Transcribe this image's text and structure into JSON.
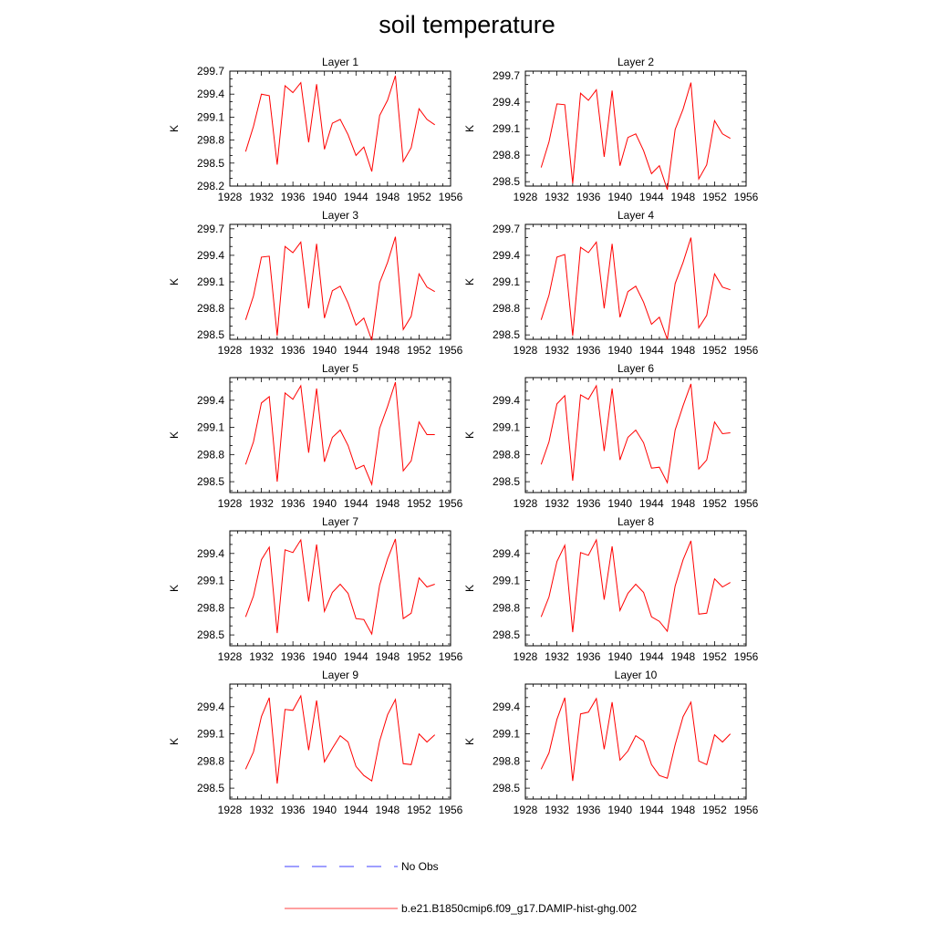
{
  "title": "soil temperature",
  "legend": {
    "obs_label": "No Obs",
    "model_label": "b.e21.B1850cmip6.f09_g17.DAMIP-hist-ghg.002",
    "model_color": "#ff0000",
    "obs_color": "#0000ff"
  },
  "chart_data": {
    "type": "line",
    "x": [
      1930,
      1931,
      1932,
      1933,
      1934,
      1935,
      1936,
      1937,
      1938,
      1939,
      1940,
      1941,
      1942,
      1943,
      1944,
      1945,
      1946,
      1947,
      1948,
      1949,
      1950,
      1951,
      1952,
      1953,
      1954
    ],
    "xlim": [
      1928,
      1956
    ],
    "xticks": [
      1928,
      1932,
      1936,
      1940,
      1944,
      1948,
      1952,
      1956
    ],
    "ylabel": "K",
    "grid": false,
    "line_color": "#ff0000",
    "panels": [
      {
        "title": "Layer 1",
        "ylim": [
          298.2,
          299.7
        ],
        "yticks": [
          "298.2",
          "298.5",
          "298.8",
          "299.1",
          "299.4",
          "299.7"
        ],
        "values": [
          298.65,
          298.98,
          299.4,
          299.38,
          298.48,
          299.51,
          299.42,
          299.55,
          298.77,
          299.53,
          298.68,
          299.02,
          299.07,
          298.87,
          298.6,
          298.71,
          298.39,
          299.12,
          299.32,
          299.64,
          298.52,
          298.7,
          299.21,
          299.07,
          299.0
        ]
      },
      {
        "title": "Layer 2",
        "ylim": [
          298.45,
          299.75
        ],
        "yticks": [
          "298.5",
          "298.8",
          "299.1",
          "299.4",
          "299.7"
        ],
        "values": [
          298.66,
          298.95,
          299.38,
          299.37,
          298.48,
          299.5,
          299.42,
          299.54,
          298.78,
          299.53,
          298.68,
          299.0,
          299.04,
          298.85,
          298.59,
          298.68,
          298.41,
          299.09,
          299.32,
          299.62,
          298.53,
          298.69,
          299.19,
          299.04,
          298.99
        ]
      },
      {
        "title": "Layer 3",
        "ylim": [
          298.45,
          299.75
        ],
        "yticks": [
          "298.5",
          "298.8",
          "299.1",
          "299.4",
          "299.7"
        ],
        "values": [
          298.67,
          298.94,
          299.38,
          299.39,
          298.49,
          299.5,
          299.43,
          299.55,
          298.8,
          299.53,
          298.69,
          299.0,
          299.05,
          298.86,
          298.61,
          298.69,
          298.44,
          299.09,
          299.32,
          299.61,
          298.56,
          298.71,
          299.19,
          299.04,
          298.99
        ]
      },
      {
        "title": "Layer 4",
        "ylim": [
          298.45,
          299.75
        ],
        "yticks": [
          "298.5",
          "298.8",
          "299.1",
          "299.4",
          "299.7"
        ],
        "values": [
          298.67,
          298.95,
          299.38,
          299.41,
          298.49,
          299.49,
          299.43,
          299.55,
          298.8,
          299.53,
          298.7,
          298.99,
          299.05,
          298.87,
          298.62,
          298.7,
          298.45,
          299.08,
          299.32,
          299.6,
          298.58,
          298.72,
          299.19,
          299.04,
          299.01
        ]
      },
      {
        "title": "Layer 5",
        "ylim": [
          298.38,
          299.65
        ],
        "yticks": [
          "298.5",
          "298.8",
          "299.1",
          "299.4"
        ],
        "values": [
          298.69,
          298.94,
          299.37,
          299.44,
          298.5,
          299.48,
          299.41,
          299.56,
          298.82,
          299.53,
          298.72,
          298.99,
          299.07,
          298.9,
          298.64,
          298.68,
          298.47,
          299.09,
          299.33,
          299.6,
          298.62,
          298.73,
          299.16,
          299.02,
          299.02
        ]
      },
      {
        "title": "Layer 6",
        "ylim": [
          298.38,
          299.65
        ],
        "yticks": [
          "298.5",
          "298.8",
          "299.1",
          "299.4"
        ],
        "values": [
          298.69,
          298.94,
          299.36,
          299.45,
          298.51,
          299.46,
          299.41,
          299.56,
          298.84,
          299.53,
          298.74,
          298.99,
          299.07,
          298.93,
          298.65,
          298.66,
          298.49,
          299.07,
          299.34,
          299.58,
          298.64,
          298.74,
          299.16,
          299.03,
          299.04
        ]
      },
      {
        "title": "Layer 7",
        "ylim": [
          298.38,
          299.65
        ],
        "yticks": [
          "298.5",
          "298.8",
          "299.1",
          "299.4"
        ],
        "values": [
          298.7,
          298.93,
          299.33,
          299.47,
          298.52,
          299.44,
          299.41,
          299.55,
          298.87,
          299.5,
          298.76,
          298.97,
          299.06,
          298.96,
          298.68,
          298.67,
          298.51,
          299.05,
          299.34,
          299.56,
          298.68,
          298.74,
          299.13,
          299.03,
          299.06
        ]
      },
      {
        "title": "Layer 8",
        "ylim": [
          298.38,
          299.65
        ],
        "yticks": [
          "298.5",
          "298.8",
          "299.1",
          "299.4"
        ],
        "values": [
          298.7,
          298.92,
          299.31,
          299.49,
          298.53,
          299.41,
          299.38,
          299.55,
          298.89,
          299.48,
          298.77,
          298.96,
          299.06,
          298.97,
          298.7,
          298.65,
          298.54,
          299.04,
          299.33,
          299.54,
          298.73,
          298.74,
          299.12,
          299.03,
          299.08
        ]
      },
      {
        "title": "Layer 9",
        "ylim": [
          298.38,
          299.65
        ],
        "yticks": [
          "298.5",
          "298.8",
          "299.1",
          "299.4"
        ],
        "values": [
          298.71,
          298.9,
          299.29,
          299.5,
          298.55,
          299.37,
          299.36,
          299.52,
          298.92,
          299.47,
          298.79,
          298.94,
          299.08,
          299.01,
          298.74,
          298.64,
          298.58,
          299.02,
          299.31,
          299.48,
          298.77,
          298.76,
          299.1,
          299.01,
          299.09
        ]
      },
      {
        "title": "Layer 10",
        "ylim": [
          298.38,
          299.65
        ],
        "yticks": [
          "298.5",
          "298.8",
          "299.1",
          "299.4"
        ],
        "values": [
          298.71,
          298.89,
          299.26,
          299.5,
          298.58,
          299.32,
          299.34,
          299.49,
          298.93,
          299.45,
          298.81,
          298.91,
          299.08,
          299.02,
          298.76,
          298.64,
          298.61,
          298.98,
          299.29,
          299.45,
          298.8,
          298.76,
          299.09,
          299.01,
          299.1
        ]
      }
    ]
  }
}
